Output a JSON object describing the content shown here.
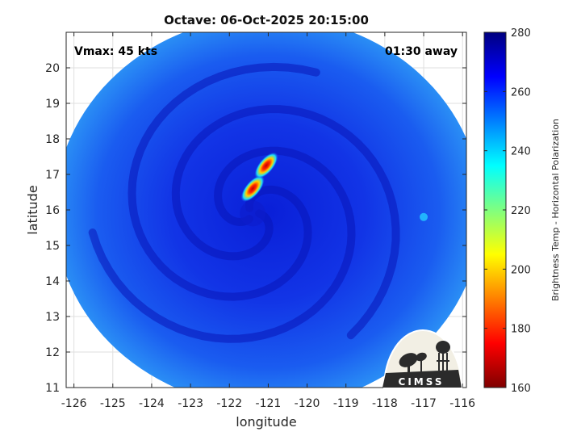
{
  "chart_data": {
    "type": "heatmap",
    "title": "Octave: 06-Oct-2025 20:15:00",
    "xlabel": "longitude",
    "ylabel": "latitude",
    "xlim": [
      -126.2,
      -115.9
    ],
    "ylim": [
      11,
      21
    ],
    "x_ticks": [
      -126,
      -125,
      -124,
      -123,
      -122,
      -121,
      -120,
      -119,
      -118,
      -117,
      -116
    ],
    "y_ticks": [
      11,
      12,
      13,
      14,
      15,
      16,
      17,
      18,
      19,
      20
    ],
    "grid": true,
    "annotations": {
      "vmax": "Vmax: 45 kts",
      "time_away": "01:30 away"
    },
    "colorbar": {
      "label": "Brightness Temp - Horizontal Polarization",
      "range": [
        160,
        280
      ],
      "ticks": [
        160,
        180,
        200,
        220,
        240,
        260,
        280
      ],
      "colormap": "jet"
    },
    "swath": {
      "center_lon": -121.0,
      "center_lat": 15.95,
      "radius_deg": 5.5
    },
    "storm_center": {
      "lon": -121.4,
      "lat": 15.9
    },
    "features": [
      {
        "name": "convective band",
        "lon": -121.4,
        "lat": 16.6,
        "min_brightness_temp": 175
      },
      {
        "name": "convective band",
        "lon": -121.05,
        "lat": 17.25,
        "min_brightness_temp": 190
      },
      {
        "name": "isolated cell",
        "lon": -117.0,
        "lat": 15.8,
        "min_brightness_temp": 245
      }
    ],
    "logo": "CIMSS"
  }
}
